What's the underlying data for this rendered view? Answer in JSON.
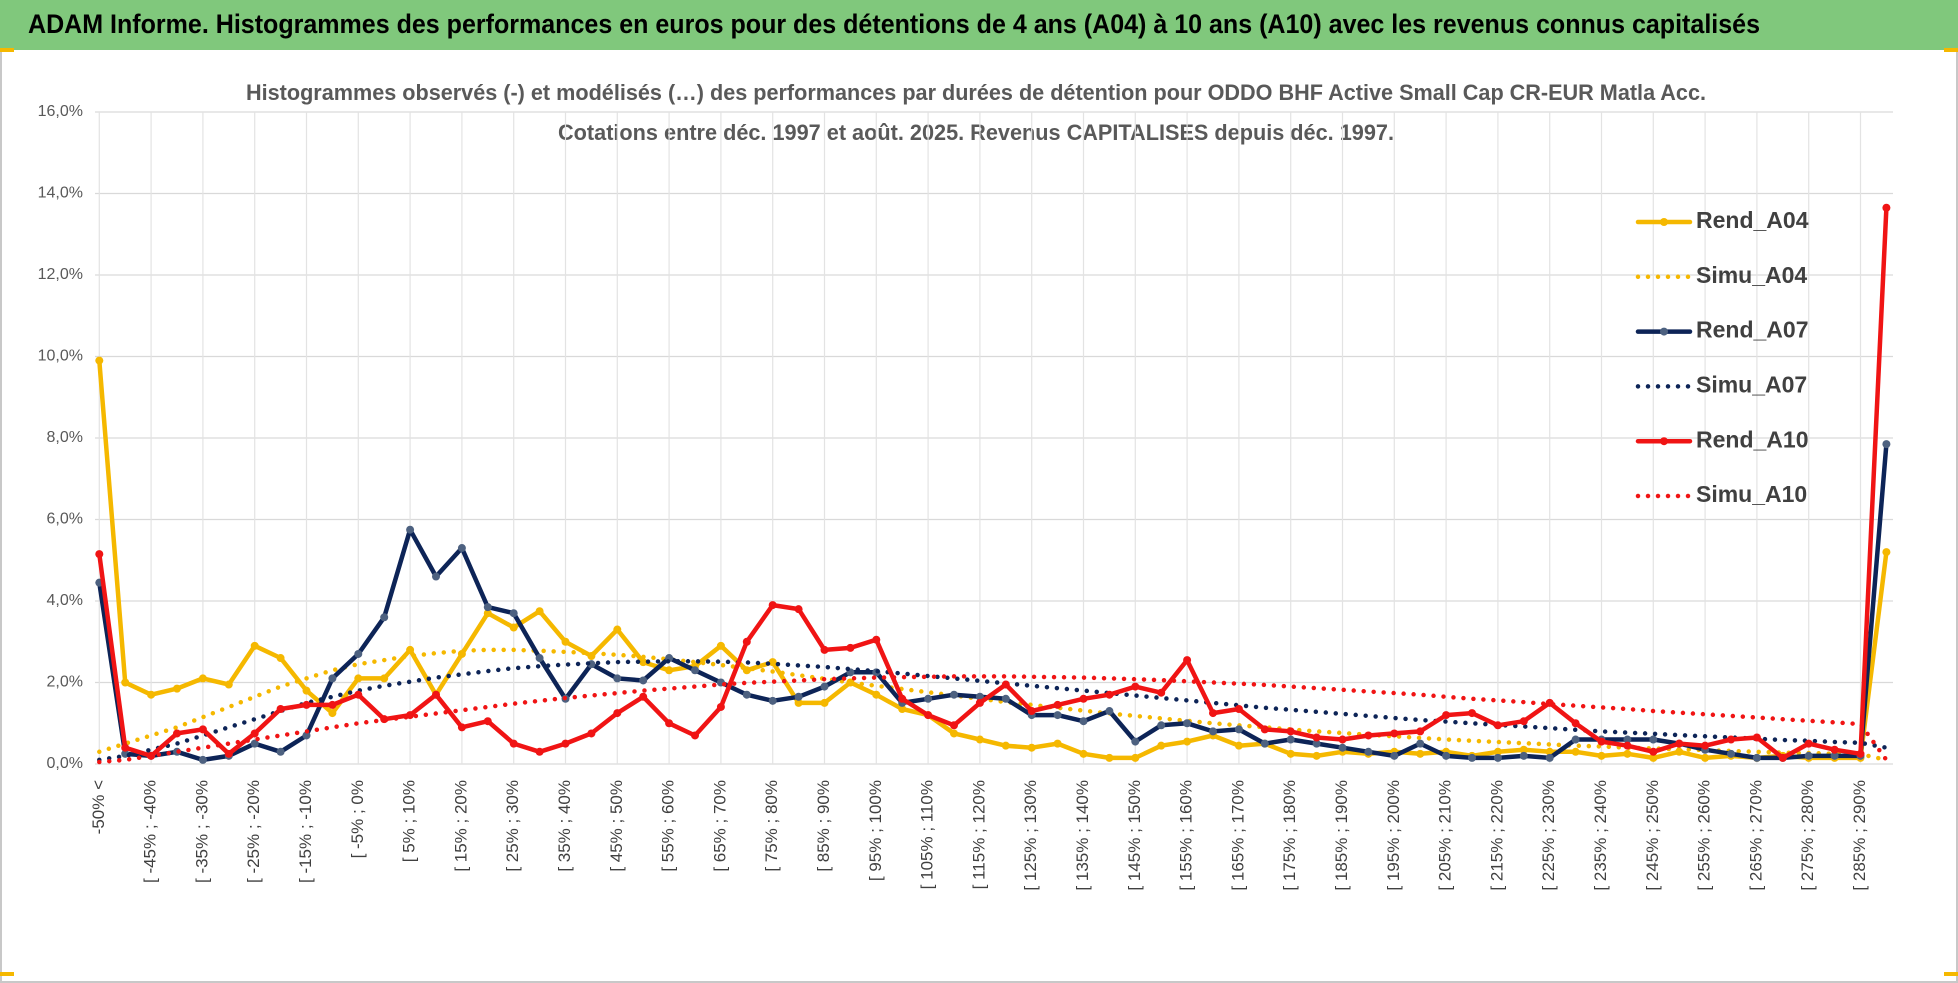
{
  "header": {
    "title": "ADAM Informe. Histogrammes des performances en euros pour des détentions de 4 ans (A04) à 10 ans (A10) avec les revenus connus capitalisés"
  },
  "chart_data": {
    "type": "line",
    "title": "Histogrammes observés (-) et modélisés (…) des performances par durées de détention pour ODDO BHF Active Small Cap CR-EUR Matla Acc.",
    "subtitle": "Cotations entre déc. 1997 et août. 2025. Revenus CAPITALISES depuis déc. 1997.",
    "categories": [
      "-50% <",
      null,
      "[ -45% ; -40%",
      null,
      "[ -35% ; -30%",
      null,
      "[ -25% ; -20%",
      null,
      "[ -15% ; -10%",
      null,
      "[ -5% ; 0%",
      null,
      "[ 5% ; 10%",
      null,
      "[ 15% ; 20%",
      null,
      "[ 25% ; 30%",
      null,
      "[ 35% ; 40%",
      null,
      "[ 45% ; 50%",
      null,
      "[ 55% ; 60%",
      null,
      "[ 65% ; 70%",
      null,
      "[ 75% ; 80%",
      null,
      "[ 85% ; 90%",
      null,
      "[ 95% ; 100%",
      null,
      "[ 105% ; 110%",
      null,
      "[ 115% ; 120%",
      null,
      "[ 125% ; 130%",
      null,
      "[ 135% ; 140%",
      null,
      "[ 145% ; 150%",
      null,
      "[ 155% ; 160%",
      null,
      "[ 165% ; 170%",
      null,
      "[ 175% ; 180%",
      null,
      "[ 185% ; 190%",
      null,
      "[ 195% ; 200%",
      null,
      "[ 205% ; 210%",
      null,
      "[ 215% ; 220%",
      null,
      "[ 225% ; 230%",
      null,
      "[ 235% ; 240%",
      null,
      "[ 245% ; 250%",
      null,
      "[ 255% ; 260%",
      null,
      "[ 265% ; 270%",
      null,
      "[ 275% ; 280%",
      null,
      "[ 285% ; 290%",
      null
    ],
    "series": [
      {
        "name": "Rend_A04",
        "color": "#f5b800",
        "style": "solid",
        "markers": true,
        "values": [
          9.9,
          2.0,
          1.7,
          1.85,
          2.1,
          1.95,
          2.9,
          2.6,
          1.8,
          1.25,
          2.1,
          2.1,
          2.8,
          1.7,
          2.7,
          3.7,
          3.35,
          3.75,
          3.0,
          2.65,
          3.3,
          2.5,
          2.3,
          2.4,
          2.9,
          2.3,
          2.5,
          1.5,
          1.5,
          2.0,
          1.7,
          1.35,
          1.2,
          0.75,
          0.6,
          0.45,
          0.4,
          0.5,
          0.25,
          0.15,
          0.15,
          0.45,
          0.55,
          0.7,
          0.45,
          0.5,
          0.25,
          0.2,
          0.3,
          0.25,
          0.3,
          0.25,
          0.3,
          0.2,
          0.3,
          0.35,
          0.3,
          0.3,
          0.2,
          0.25,
          0.15,
          0.3,
          0.15,
          0.2,
          0.15,
          0.2,
          0.15,
          0.15,
          0.15,
          5.2
        ]
      },
      {
        "name": "Simu_A04",
        "color": "#f5b800",
        "style": "dotted",
        "markers": false,
        "values": [
          0.3,
          0.5,
          0.7,
          0.9,
          1.15,
          1.4,
          1.65,
          1.9,
          2.1,
          2.3,
          2.45,
          2.55,
          2.65,
          2.72,
          2.78,
          2.8,
          2.8,
          2.78,
          2.75,
          2.72,
          2.68,
          2.63,
          2.57,
          2.5,
          2.43,
          2.35,
          2.27,
          2.18,
          2.09,
          2.0,
          1.92,
          1.84,
          1.76,
          1.68,
          1.6,
          1.52,
          1.45,
          1.38,
          1.31,
          1.24,
          1.18,
          1.12,
          1.06,
          1.0,
          0.95,
          0.9,
          0.85,
          0.8,
          0.76,
          0.72,
          0.68,
          0.64,
          0.6,
          0.57,
          0.54,
          0.51,
          0.48,
          0.45,
          0.43,
          0.4,
          0.38,
          0.36,
          0.34,
          0.32,
          0.3,
          0.28,
          0.27,
          0.25,
          0.24,
          0.1
        ]
      },
      {
        "name": "Rend_A07",
        "color": "#0d2457",
        "style": "solid",
        "markers": true,
        "marker_color": "#4d6180",
        "values": [
          4.45,
          0.25,
          0.2,
          0.3,
          0.1,
          0.2,
          0.5,
          0.3,
          0.7,
          2.1,
          2.7,
          3.6,
          5.75,
          4.6,
          5.3,
          3.85,
          3.7,
          2.6,
          1.6,
          2.45,
          2.1,
          2.05,
          2.6,
          2.3,
          2.0,
          1.7,
          1.55,
          1.65,
          1.9,
          2.25,
          2.25,
          1.5,
          1.6,
          1.7,
          1.65,
          1.6,
          1.2,
          1.2,
          1.05,
          1.3,
          0.55,
          0.95,
          1.0,
          0.8,
          0.85,
          0.5,
          0.6,
          0.5,
          0.4,
          0.3,
          0.2,
          0.5,
          0.2,
          0.15,
          0.15,
          0.2,
          0.15,
          0.6,
          0.6,
          0.6,
          0.6,
          0.5,
          0.35,
          0.25,
          0.15,
          0.15,
          0.2,
          0.2,
          0.2,
          7.85
        ]
      },
      {
        "name": "Simu_A07",
        "color": "#0d2457",
        "style": "dotted",
        "markers": false,
        "values": [
          0.1,
          0.2,
          0.35,
          0.5,
          0.7,
          0.9,
          1.1,
          1.3,
          1.5,
          1.65,
          1.8,
          1.92,
          2.02,
          2.12,
          2.2,
          2.28,
          2.35,
          2.4,
          2.44,
          2.47,
          2.5,
          2.51,
          2.52,
          2.52,
          2.51,
          2.49,
          2.46,
          2.42,
          2.38,
          2.33,
          2.28,
          2.22,
          2.16,
          2.1,
          2.04,
          1.98,
          1.92,
          1.86,
          1.8,
          1.74,
          1.68,
          1.62,
          1.56,
          1.5,
          1.44,
          1.38,
          1.33,
          1.28,
          1.23,
          1.18,
          1.13,
          1.08,
          1.04,
          1.0,
          0.96,
          0.92,
          0.88,
          0.84,
          0.8,
          0.77,
          0.74,
          0.71,
          0.68,
          0.65,
          0.62,
          0.59,
          0.57,
          0.54,
          0.52,
          0.4
        ]
      },
      {
        "name": "Rend_A10",
        "color": "#f01414",
        "style": "solid",
        "markers": true,
        "values": [
          5.15,
          0.4,
          0.2,
          0.75,
          0.85,
          0.25,
          0.75,
          1.35,
          1.45,
          1.45,
          1.7,
          1.1,
          1.2,
          1.7,
          0.9,
          1.05,
          0.5,
          0.3,
          0.5,
          0.75,
          1.25,
          1.65,
          1.0,
          0.7,
          1.4,
          3.0,
          3.9,
          3.8,
          2.8,
          2.85,
          3.05,
          1.6,
          1.2,
          0.95,
          1.5,
          1.95,
          1.3,
          1.45,
          1.6,
          1.7,
          1.9,
          1.75,
          2.55,
          1.25,
          1.35,
          0.85,
          0.8,
          0.65,
          0.6,
          0.7,
          0.75,
          0.8,
          1.2,
          1.25,
          0.95,
          1.05,
          1.5,
          1.0,
          0.55,
          0.45,
          0.3,
          0.5,
          0.45,
          0.6,
          0.65,
          0.15,
          0.5,
          0.35,
          0.25,
          13.65
        ]
      },
      {
        "name": "Simu_A10",
        "color": "#f01414",
        "style": "dotted",
        "markers": false,
        "values": [
          0.05,
          0.1,
          0.2,
          0.3,
          0.4,
          0.5,
          0.6,
          0.7,
          0.8,
          0.9,
          1.0,
          1.08,
          1.16,
          1.24,
          1.32,
          1.4,
          1.48,
          1.55,
          1.62,
          1.68,
          1.74,
          1.8,
          1.85,
          1.9,
          1.95,
          1.99,
          2.02,
          2.05,
          2.08,
          2.1,
          2.12,
          2.13,
          2.14,
          2.15,
          2.15,
          2.15,
          2.14,
          2.13,
          2.12,
          2.1,
          2.08,
          2.06,
          2.03,
          2.0,
          1.97,
          1.94,
          1.9,
          1.86,
          1.82,
          1.78,
          1.74,
          1.7,
          1.65,
          1.6,
          1.56,
          1.52,
          1.47,
          1.43,
          1.39,
          1.35,
          1.3,
          1.26,
          1.22,
          1.18,
          1.14,
          1.1,
          1.06,
          1.02,
          0.98,
          0.1
        ]
      }
    ],
    "ylim": [
      0,
      16
    ],
    "yticks": [
      {
        "value": 0,
        "label": "0,0%"
      },
      {
        "value": 2,
        "label": "2,0%"
      },
      {
        "value": 4,
        "label": "4,0%"
      },
      {
        "value": 6,
        "label": "6,0%"
      },
      {
        "value": 8,
        "label": "8,0%"
      },
      {
        "value": 10,
        "label": "10,0%"
      },
      {
        "value": 12,
        "label": "12,0%"
      },
      {
        "value": 14,
        "label": "14,0%"
      },
      {
        "value": 16,
        "label": "16,0%"
      }
    ],
    "grid": true,
    "legend": "right"
  }
}
